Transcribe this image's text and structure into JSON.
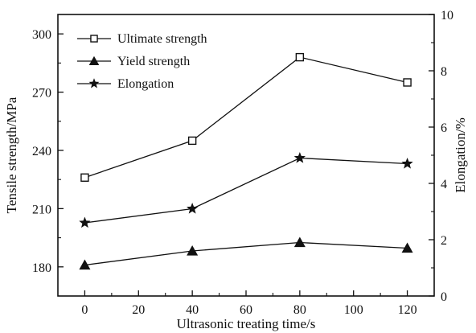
{
  "chart_data": {
    "type": "line",
    "title": "",
    "xlabel": "Ultrasonic treating time/s",
    "ylabel": "Tensile strength/MPa",
    "y2label": "Elongation/%",
    "x": [
      0,
      40,
      80,
      120
    ],
    "xlim": [
      -10,
      130
    ],
    "ylim": [
      165,
      310
    ],
    "y2lim": [
      0,
      10
    ],
    "x_ticks": [
      0,
      20,
      40,
      60,
      80,
      100,
      120
    ],
    "y_ticks": [
      180,
      210,
      240,
      270,
      300
    ],
    "y2_ticks": [
      0,
      2,
      4,
      6,
      8,
      10
    ],
    "grid": false,
    "legend_position": "top-left",
    "series": [
      {
        "name": "Ultimate strength",
        "axis": "left",
        "marker": "open-square",
        "values": [
          226,
          245,
          288,
          275
        ]
      },
      {
        "name": "Yield strength",
        "axis": "right",
        "marker": "filled-triangle",
        "values": [
          1.1,
          1.6,
          1.9,
          1.7
        ]
      },
      {
        "name": "Elongation",
        "axis": "right",
        "marker": "star",
        "values": [
          2.6,
          3.1,
          4.9,
          4.7
        ]
      }
    ]
  }
}
